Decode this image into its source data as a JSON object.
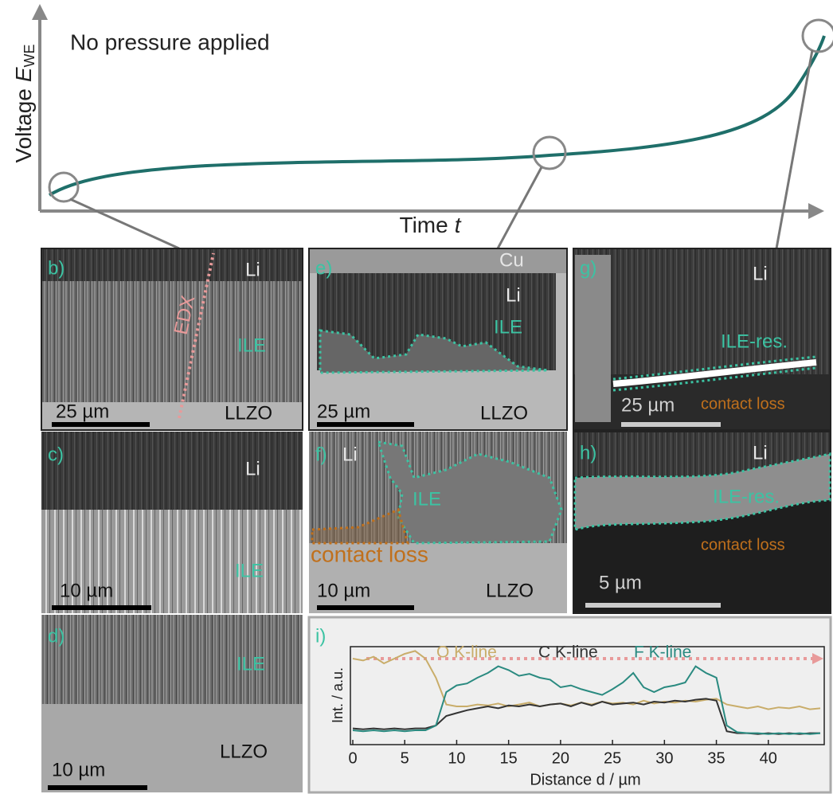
{
  "schematic": {
    "title": "No pressure applied",
    "y_label": {
      "text": "Voltage",
      "symbol": "E",
      "subscript": "WE"
    },
    "x_label": {
      "text": "Time",
      "symbol": "t"
    }
  },
  "panels": [
    {
      "label": "b)",
      "texts": [
        "Li",
        "EDX",
        "ILE",
        "25 µm",
        "LLZO"
      ]
    },
    {
      "label": "c)",
      "texts": [
        "Li",
        "ILE",
        "10 µm"
      ]
    },
    {
      "label": "d)",
      "texts": [
        "ILE",
        "LLZO",
        "10 µm"
      ]
    },
    {
      "label": "e)",
      "texts": [
        "Cu",
        "Li",
        "ILE",
        "25 µm",
        "LLZO"
      ]
    },
    {
      "label": "f)",
      "texts": [
        "Li",
        "ILE",
        "contact loss",
        "10 µm",
        "LLZO"
      ]
    },
    {
      "label": "g)",
      "texts": [
        "Li",
        "ILE-res.",
        "25 µm",
        "contact loss"
      ]
    },
    {
      "label": "h)",
      "texts": [
        "Li",
        "ILE-res.",
        "contact loss",
        "5 µm"
      ]
    },
    {
      "label": "i)"
    }
  ],
  "chart_data": {
    "type": "line",
    "x_label": "Distance d / µm",
    "y_label": "Int. / a.u.",
    "x": [
      0,
      1,
      2,
      3,
      4,
      5,
      6,
      7,
      8,
      9,
      10,
      11,
      12,
      13,
      14,
      15,
      16,
      17,
      18,
      19,
      20,
      21,
      22,
      23,
      24,
      25,
      26,
      27,
      28,
      29,
      30,
      31,
      32,
      33,
      34,
      35,
      36,
      37,
      38,
      39,
      40,
      41,
      42,
      43,
      44,
      45
    ],
    "series": [
      {
        "name": "O K-line",
        "color": "#c9ad6a",
        "values": [
          0.9,
          0.88,
          0.92,
          0.85,
          0.9,
          0.95,
          0.98,
          0.9,
          0.7,
          0.42,
          0.4,
          0.4,
          0.42,
          0.41,
          0.43,
          0.4,
          0.42,
          0.44,
          0.4,
          0.42,
          0.43,
          0.41,
          0.44,
          0.42,
          0.45,
          0.43,
          0.44,
          0.42,
          0.46,
          0.43,
          0.45,
          0.44,
          0.46,
          0.45,
          0.47,
          0.48,
          0.42,
          0.4,
          0.38,
          0.4,
          0.37,
          0.39,
          0.38,
          0.4,
          0.37,
          0.38
        ]
      },
      {
        "name": "C K-line",
        "color": "#333333",
        "values": [
          0.17,
          0.16,
          0.17,
          0.16,
          0.17,
          0.16,
          0.17,
          0.17,
          0.2,
          0.3,
          0.33,
          0.36,
          0.38,
          0.4,
          0.38,
          0.41,
          0.4,
          0.42,
          0.4,
          0.42,
          0.43,
          0.4,
          0.44,
          0.41,
          0.45,
          0.42,
          0.43,
          0.44,
          0.42,
          0.45,
          0.44,
          0.46,
          0.45,
          0.47,
          0.48,
          0.46,
          0.14,
          0.12,
          0.12,
          0.11,
          0.12,
          0.11,
          0.12,
          0.11,
          0.12,
          0.12
        ]
      },
      {
        "name": "F K-line",
        "color": "#2a8a80",
        "values": [
          0.15,
          0.14,
          0.15,
          0.14,
          0.15,
          0.14,
          0.15,
          0.15,
          0.2,
          0.55,
          0.62,
          0.64,
          0.7,
          0.75,
          0.82,
          0.78,
          0.72,
          0.74,
          0.7,
          0.68,
          0.6,
          0.62,
          0.58,
          0.55,
          0.52,
          0.58,
          0.65,
          0.75,
          0.6,
          0.55,
          0.6,
          0.62,
          0.65,
          0.82,
          0.75,
          0.7,
          0.2,
          0.13,
          0.12,
          0.12,
          0.11,
          0.12,
          0.11,
          0.12,
          0.11,
          0.12
        ]
      }
    ],
    "xlim": [
      0,
      45
    ],
    "ylim": [
      0,
      1
    ],
    "xticks": [
      0,
      5,
      10,
      15,
      20,
      25,
      30,
      35,
      40
    ]
  }
}
